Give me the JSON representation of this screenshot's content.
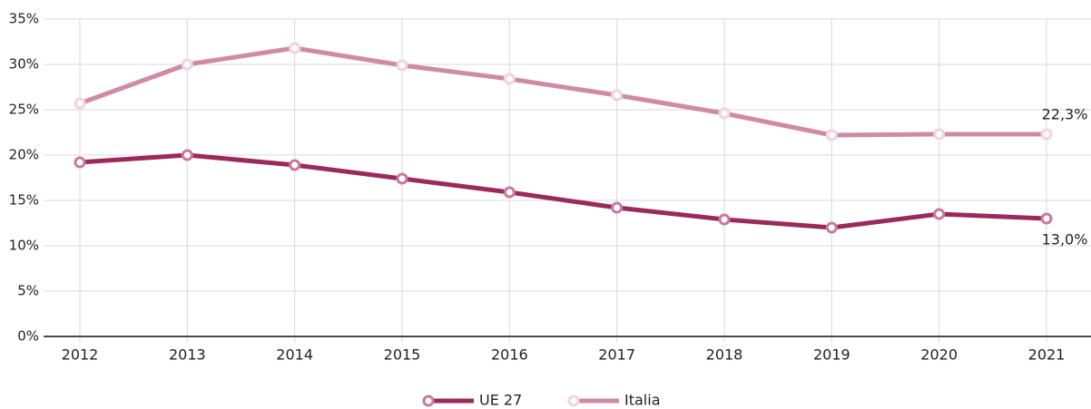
{
  "chart_data": {
    "type": "line",
    "categories": [
      "2012",
      "2013",
      "2014",
      "2015",
      "2016",
      "2017",
      "2018",
      "2019",
      "2020",
      "2021"
    ],
    "series": [
      {
        "name": "UE 27",
        "color": "#9b2a59",
        "marker_color": "#c97a9a",
        "values": [
          19.2,
          20.0,
          18.9,
          17.4,
          15.9,
          14.2,
          12.9,
          12.0,
          13.5,
          13.0
        ],
        "value_labels": [
          null,
          null,
          null,
          null,
          null,
          null,
          null,
          null,
          null,
          "13,0%"
        ]
      },
      {
        "name": "Italia",
        "color": "#d08aa4",
        "marker_color": "#f3d2de",
        "values": [
          25.7,
          30.0,
          31.8,
          29.9,
          28.4,
          26.6,
          24.6,
          22.2,
          22.3,
          22.3
        ],
        "value_labels": [
          null,
          null,
          null,
          null,
          null,
          null,
          null,
          null,
          null,
          "22,3%"
        ]
      }
    ],
    "ylim": [
      0,
      35
    ],
    "yticks": [
      {
        "value": 0,
        "label": "0%"
      },
      {
        "value": 5,
        "label": "5%"
      },
      {
        "value": 10,
        "label": "10%"
      },
      {
        "value": 15,
        "label": "15%"
      },
      {
        "value": 20,
        "label": "20%"
      },
      {
        "value": 25,
        "label": "25%"
      },
      {
        "value": 30,
        "label": "30%"
      },
      {
        "value": 35,
        "label": "35%"
      }
    ],
    "grid": true,
    "legend": "bottom"
  }
}
